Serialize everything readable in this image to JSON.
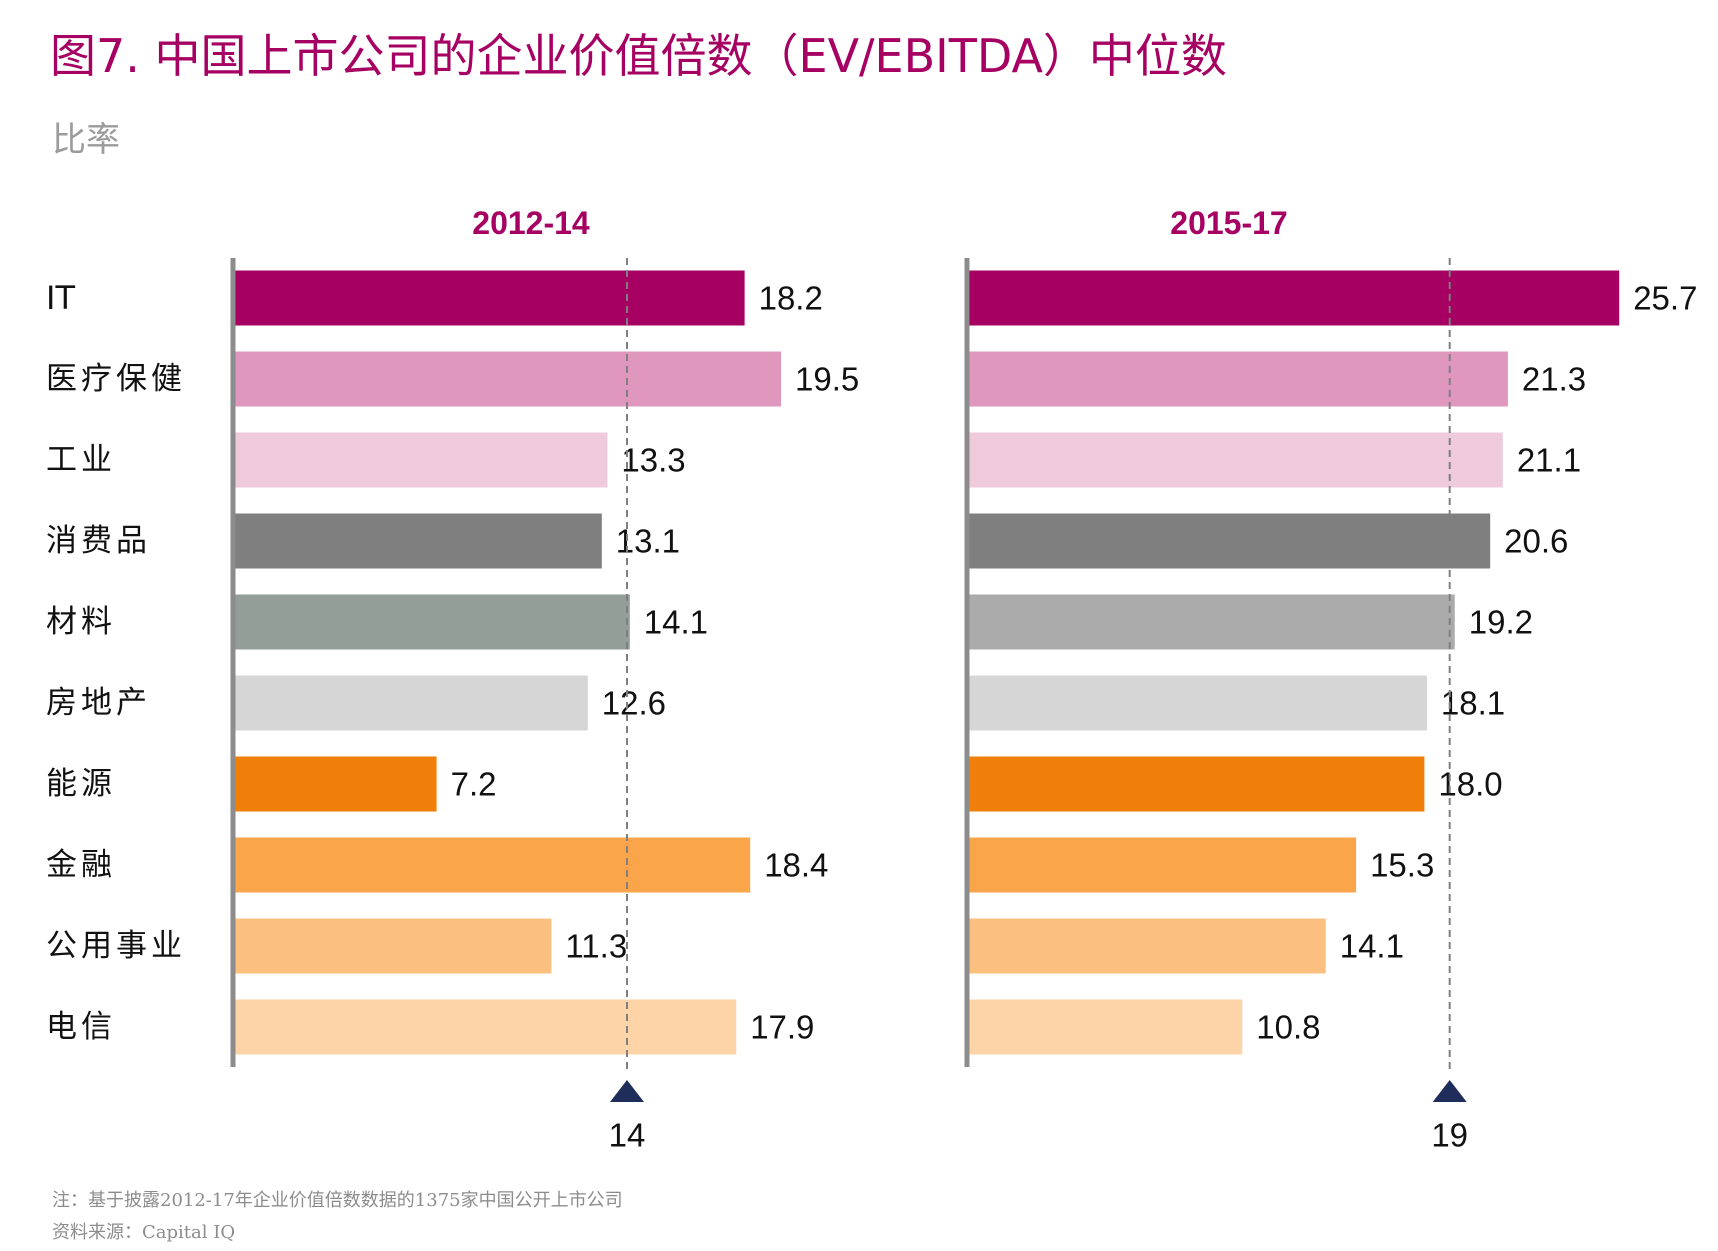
{
  "title": "图7. 中国上市公司的企业价值倍数（EV/EBITDA）中位数",
  "subtitle": "比率",
  "note": "注：基于披露2012-17年企业价值倍数数据的1375家中国公开上市公司",
  "source": "资料来源：Capital IQ",
  "colors": {
    "title": "#A50062",
    "bars": [
      "#A50062",
      "#DF97BE",
      "#EFCADB",
      "#7F7F7F",
      "#949E98",
      "#D6D6D6",
      "#F07F09",
      "#FBA54B",
      "#FBC07F",
      "#FCD4A7"
    ],
    "bars_2015_17_materials": "#ABABAB",
    "axis": "#8c8c8c",
    "median_line": "#7f7f7f",
    "marker": "#1F2D5A"
  },
  "chart_data": [
    {
      "type": "bar",
      "orientation": "horizontal",
      "title": "2012-14",
      "categories": [
        "IT",
        "医疗保健",
        "工业",
        "消费品",
        "材料",
        "房地产",
        "能源",
        "金融",
        "公用事业",
        "电信"
      ],
      "values": [
        18.2,
        19.5,
        13.3,
        13.1,
        14.1,
        12.6,
        7.2,
        18.4,
        11.3,
        17.9
      ],
      "value_labels": [
        "18.2",
        "19.5",
        "13.3",
        "13.1",
        "14.1",
        "12.6",
        "7.2",
        "18.4",
        "11.3",
        "17.9"
      ],
      "median": 14,
      "median_label": "14",
      "xlim": [
        0,
        25.7
      ]
    },
    {
      "type": "bar",
      "orientation": "horizontal",
      "title": "2015-17",
      "categories": [
        "IT",
        "医疗保健",
        "工业",
        "消费品",
        "材料",
        "房地产",
        "能源",
        "金融",
        "公用事业",
        "电信"
      ],
      "values": [
        25.7,
        21.3,
        21.1,
        20.6,
        19.2,
        18.1,
        18.0,
        15.3,
        14.1,
        10.8
      ],
      "value_labels": [
        "25.7",
        "21.3",
        "21.1",
        "20.6",
        "19.2",
        "18.1",
        "18.0",
        "15.3",
        "14.1",
        "10.8"
      ],
      "median": 19,
      "median_label": "19",
      "xlim": [
        0,
        25.7
      ]
    }
  ]
}
